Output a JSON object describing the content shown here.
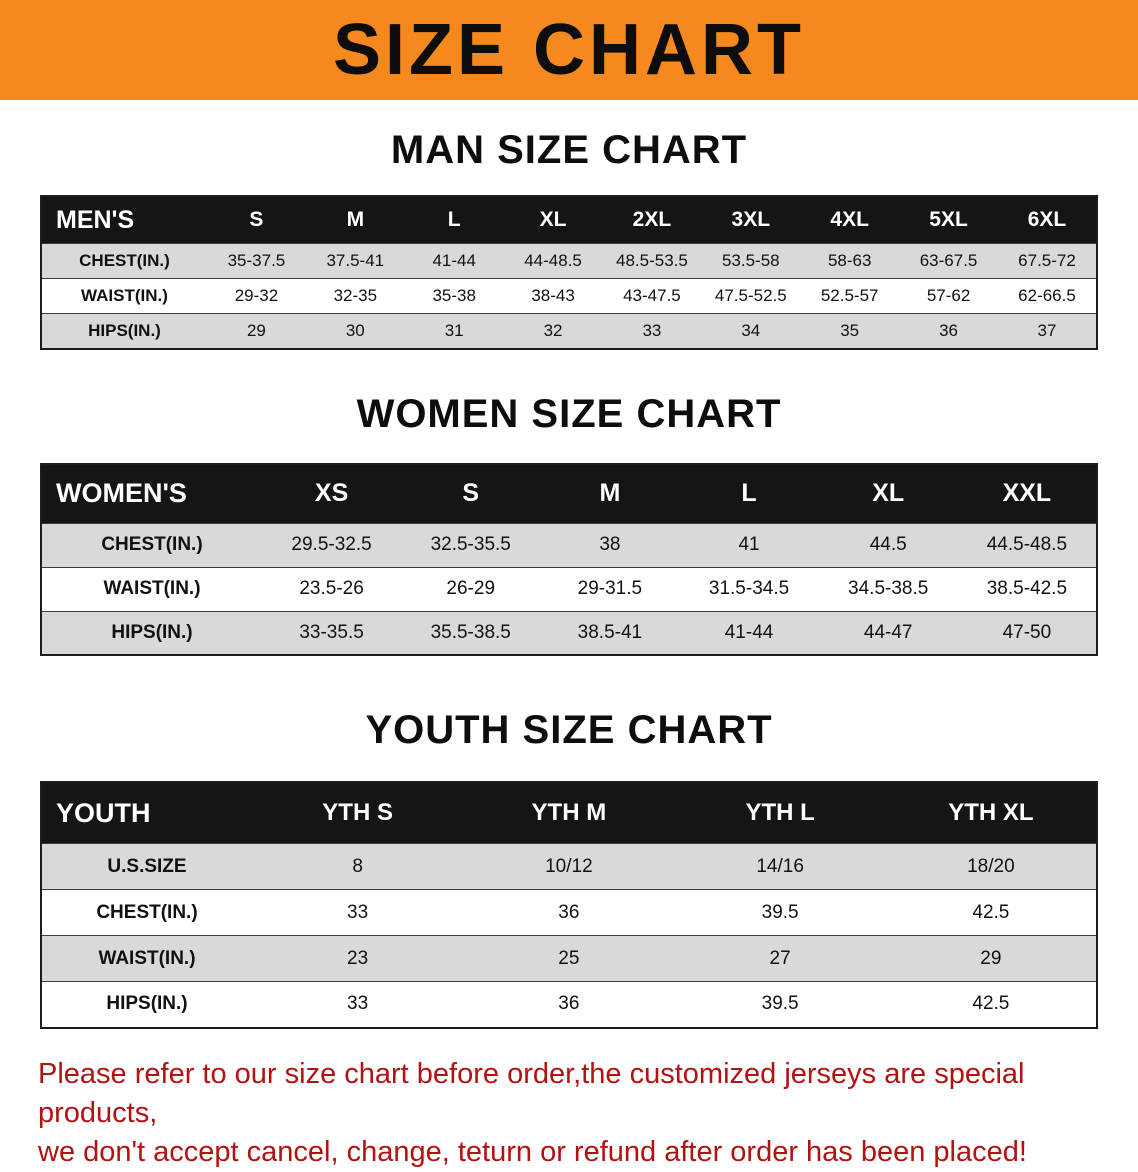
{
  "banner": {
    "title": "SIZE CHART"
  },
  "colors": {
    "banner_bg": "#F6891E",
    "header_bg": "#151515",
    "row_alt": "#d9d9d9",
    "footer_red": "#b31212"
  },
  "chart_data": [
    {
      "type": "table",
      "title": "MAN SIZE CHART",
      "corner_label": "MEN'S",
      "columns": [
        "S",
        "M",
        "L",
        "XL",
        "2XL",
        "3XL",
        "4XL",
        "5XL",
        "6XL"
      ],
      "rows": [
        {
          "label": "CHEST(IN.)",
          "values": [
            "35-37.5",
            "37.5-41",
            "41-44",
            "44-48.5",
            "48.5-53.5",
            "53.5-58",
            "58-63",
            "63-67.5",
            "67.5-72"
          ]
        },
        {
          "label": "WAIST(IN.)",
          "values": [
            "29-32",
            "32-35",
            "35-38",
            "38-43",
            "43-47.5",
            "47.5-52.5",
            "52.5-57",
            "57-62",
            "62-66.5"
          ]
        },
        {
          "label": "HIPS(IN.)",
          "values": [
            "29",
            "30",
            "31",
            "32",
            "33",
            "34",
            "35",
            "36",
            "37"
          ]
        }
      ]
    },
    {
      "type": "table",
      "title": "WOMEN SIZE CHART",
      "corner_label": "WOMEN'S",
      "columns": [
        "XS",
        "S",
        "M",
        "L",
        "XL",
        "XXL"
      ],
      "rows": [
        {
          "label": "CHEST(IN.)",
          "values": [
            "29.5-32.5",
            "32.5-35.5",
            "38",
            "41",
            "44.5",
            "44.5-48.5"
          ]
        },
        {
          "label": "WAIST(IN.)",
          "values": [
            "23.5-26",
            "26-29",
            "29-31.5",
            "31.5-34.5",
            "34.5-38.5",
            "38.5-42.5"
          ]
        },
        {
          "label": "HIPS(IN.)",
          "values": [
            "33-35.5",
            "35.5-38.5",
            "38.5-41",
            "41-44",
            "44-47",
            "47-50"
          ]
        }
      ]
    },
    {
      "type": "table",
      "title": "YOUTH SIZE CHART",
      "corner_label": "YOUTH",
      "columns": [
        "YTH S",
        "YTH M",
        "YTH L",
        "YTH XL"
      ],
      "rows": [
        {
          "label": "U.S.SIZE",
          "values": [
            "8",
            "10/12",
            "14/16",
            "18/20"
          ]
        },
        {
          "label": "CHEST(IN.)",
          "values": [
            "33",
            "36",
            "39.5",
            "42.5"
          ]
        },
        {
          "label": "WAIST(IN.)",
          "values": [
            "23",
            "25",
            "27",
            "29"
          ]
        },
        {
          "label": "HIPS(IN.)",
          "values": [
            "33",
            "36",
            "39.5",
            "42.5"
          ]
        }
      ]
    }
  ],
  "footer": {
    "line1": "Please refer to our size chart before order,the customized jerseys are special products,",
    "line2": "we don't accept cancel, change, teturn or refund after order has been placed!"
  }
}
